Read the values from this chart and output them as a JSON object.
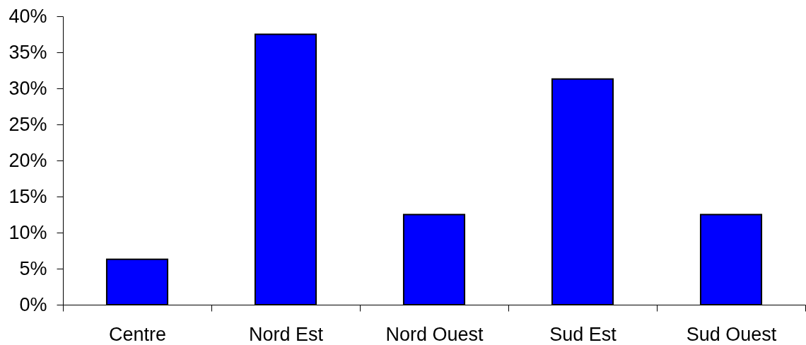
{
  "chart_data": {
    "type": "bar",
    "categories": [
      "Centre",
      "Nord Est",
      "Nord Ouest",
      "Sud Est",
      "Sud Ouest"
    ],
    "values": [
      6.3,
      37.5,
      12.5,
      31.3,
      12.5
    ],
    "color": "#0000ff",
    "ylim": [
      0,
      40
    ],
    "yticks": [
      {
        "value": 0,
        "label": "0%"
      },
      {
        "value": 5,
        "label": "5%"
      },
      {
        "value": 10,
        "label": "10%"
      },
      {
        "value": 15,
        "label": "15%"
      },
      {
        "value": 20,
        "label": "20%"
      },
      {
        "value": 25,
        "label": "25%"
      },
      {
        "value": 30,
        "label": "30%"
      },
      {
        "value": 35,
        "label": "35%"
      },
      {
        "value": 40,
        "label": "40%"
      }
    ],
    "grid": false
  }
}
